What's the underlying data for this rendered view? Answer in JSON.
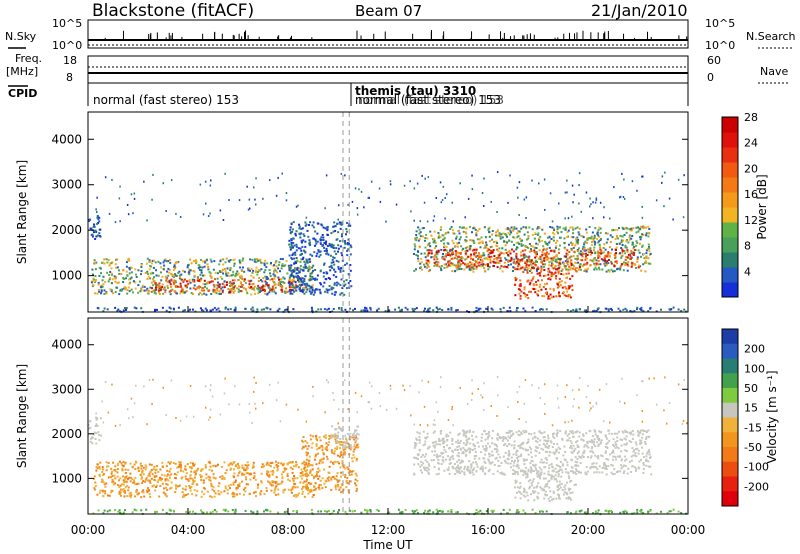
{
  "header": {
    "station": "Blackstone (fitACF)",
    "beam": "Beam 07",
    "date": "21/Jan/2010"
  },
  "status_panels": {
    "nsky_label": "N.Sky",
    "nsearch_label": "N.Search",
    "freq_label_line1": "Freq.",
    "freq_label_line2": "[MHz]",
    "nave_label": "Nave",
    "cpid_label": "CPID",
    "noise_ticks_left": [
      "10^5",
      "10^0"
    ],
    "noise_ticks_right": [
      "10^5",
      "10^0"
    ],
    "freq_ticks": [
      "18",
      "8"
    ],
    "nave_ticks": [
      "60",
      "0"
    ],
    "cpid_segments": [
      {
        "text": "normal (fast stereo) 153",
        "start_hour": 0.0
      },
      {
        "text": "themis (tau) 3310",
        "start_hour": 10.3,
        "bold": true
      },
      {
        "text": "normal (fast stereo) 153",
        "start_hour": 10.3,
        "overlapped": true
      }
    ]
  },
  "colorbars": {
    "power": {
      "label": "Power [dB]",
      "ticks": [
        "4",
        "8",
        "12",
        "16",
        "20",
        "24",
        "28"
      ],
      "colors": [
        "#1530d9",
        "#2459c4",
        "#2a7e6e",
        "#49a05a",
        "#5fb247",
        "#f2b325",
        "#f59a1c",
        "#f47a16",
        "#f25a12",
        "#e83010",
        "#e0100d",
        "#cc0000"
      ]
    },
    "velocity": {
      "label": "Velocity [m s⁻¹]",
      "ticks": [
        "200",
        "100",
        "50",
        "15",
        "-15",
        "-50",
        "-100",
        "-200"
      ],
      "colors": [
        "#1c3ca8",
        "#2a5bbf",
        "#287e72",
        "#43a14d",
        "#7ecb3f",
        "#c7c7bf",
        "#f0b23a",
        "#f2951e",
        "#f27a18",
        "#ec4e12",
        "#e82010",
        "#e0000c"
      ]
    }
  },
  "chart_data": [
    {
      "type": "heatmap",
      "quantity": "Power",
      "xlabel": "",
      "ylabel": "Slant Range [km]",
      "xlim": [
        0,
        24
      ],
      "ylim": [
        200,
        4600
      ],
      "yticks": [
        1000,
        2000,
        3000,
        4000
      ],
      "xticks": [
        "00:00",
        "04:00",
        "08:00",
        "12:00",
        "16:00",
        "20:00",
        "00:00"
      ],
      "vline_hours": [
        10.2,
        10.45
      ],
      "regions": [
        {
          "t0": 0.0,
          "t1": 0.5,
          "r0": 1800,
          "r1": 2400,
          "level": "low"
        },
        {
          "t0": 0.1,
          "t1": 9.0,
          "r0": 600,
          "r1": 1400,
          "level": "medium"
        },
        {
          "t0": 2.5,
          "t1": 8.5,
          "r0": 650,
          "r1": 950,
          "level": "high"
        },
        {
          "t0": 8.0,
          "t1": 10.5,
          "r0": 600,
          "r1": 2200,
          "level": "low"
        },
        {
          "t0": 13.0,
          "t1": 22.5,
          "r0": 1100,
          "r1": 2100,
          "level": "medium"
        },
        {
          "t0": 13.5,
          "t1": 22.0,
          "r0": 1200,
          "r1": 1600,
          "level": "high"
        },
        {
          "t0": 17.0,
          "t1": 19.5,
          "r0": 500,
          "r1": 1200,
          "level": "high"
        },
        {
          "t0": 0.0,
          "t1": 24.0,
          "r0": 220,
          "r1": 320,
          "level": "low"
        }
      ]
    },
    {
      "type": "heatmap",
      "quantity": "Velocity",
      "xlabel": "Time UT",
      "ylabel": "Slant Range [km]",
      "xlim": [
        0,
        24
      ],
      "ylim": [
        200,
        4600
      ],
      "yticks": [
        1000,
        2000,
        3000,
        4000
      ],
      "xticks": [
        "00:00",
        "04:00",
        "08:00",
        "12:00",
        "16:00",
        "20:00",
        "00:00"
      ],
      "vline_hours": [
        10.2,
        10.45
      ],
      "regions": [
        {
          "t0": 0.0,
          "t1": 0.5,
          "r0": 1800,
          "r1": 2400,
          "level": "grey"
        },
        {
          "t0": 0.2,
          "t1": 9.0,
          "r0": 600,
          "r1": 1400,
          "level": "orange"
        },
        {
          "t0": 8.5,
          "t1": 10.8,
          "r0": 700,
          "r1": 2000,
          "level": "orange"
        },
        {
          "t0": 9.7,
          "t1": 10.8,
          "r0": 1700,
          "r1": 2200,
          "level": "grey"
        },
        {
          "t0": 13.0,
          "t1": 22.5,
          "r0": 1100,
          "r1": 2100,
          "level": "grey"
        },
        {
          "t0": 17.0,
          "t1": 19.5,
          "r0": 500,
          "r1": 1200,
          "level": "grey"
        },
        {
          "t0": 0.0,
          "t1": 24.0,
          "r0": 220,
          "r1": 320,
          "level": "green"
        }
      ]
    }
  ]
}
